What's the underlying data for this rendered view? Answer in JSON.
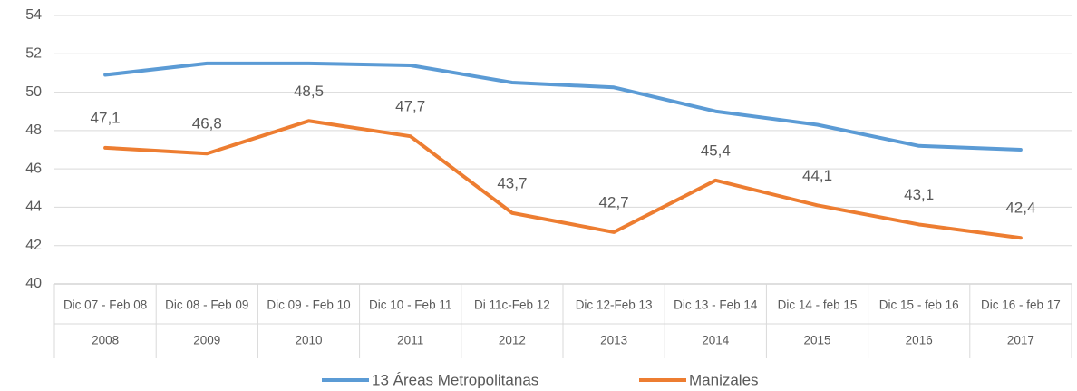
{
  "chart_data": {
    "type": "line",
    "categories": [
      "Dic 07 - Feb 08",
      "Dic 08 - Feb 09",
      "Dic 09 - Feb 10",
      "Dic 10 - Feb 11",
      "Di 11c-Feb 12",
      "Dic 12-Feb 13",
      "Dic 13 - Feb 14",
      "Dic 14 - feb 15",
      "Dic 15 - feb 16",
      "Dic 16 - feb 17"
    ],
    "years": [
      "2008",
      "2009",
      "2010",
      "2011",
      "2012",
      "2013",
      "2014",
      "2015",
      "2016",
      "2017"
    ],
    "series": [
      {
        "name": "13 Áreas Metropolitanas",
        "color": "#5b9bd5",
        "values": [
          50.9,
          51.5,
          51.5,
          51.4,
          50.5,
          50.25,
          49.0,
          48.3,
          47.2,
          47.0
        ]
      },
      {
        "name": "Manizales",
        "color": "#ed7d31",
        "values": [
          47.1,
          46.8,
          48.5,
          47.7,
          43.7,
          42.7,
          45.4,
          44.1,
          43.1,
          42.4
        ],
        "value_labels": [
          "47,1",
          "46,8",
          "48,5",
          "47,7",
          "43,7",
          "42,7",
          "45,4",
          "44,1",
          "43,1",
          "42,4"
        ]
      }
    ],
    "ylim": [
      40,
      54
    ],
    "yticks": [
      40,
      42,
      44,
      46,
      48,
      50,
      52,
      54
    ],
    "grid": true,
    "legend": "bottom"
  }
}
